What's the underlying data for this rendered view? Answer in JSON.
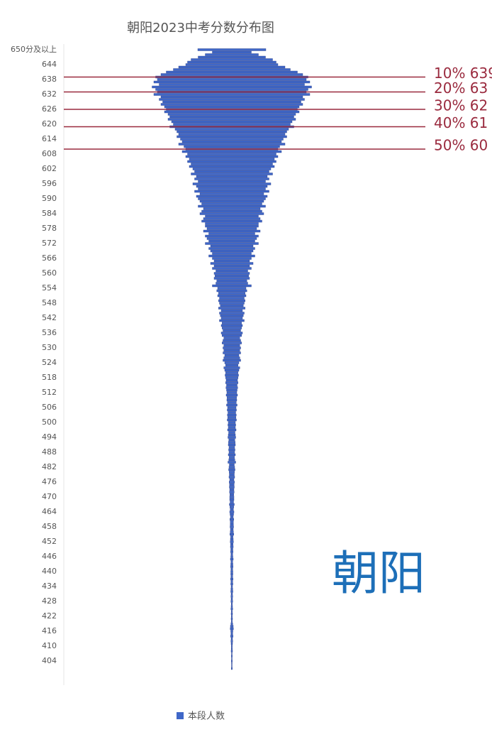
{
  "chart_data": {
    "type": "bar",
    "orientation": "horizontal-centered",
    "title": "朝阳2023中考分数分布图",
    "watermark": "朝阳",
    "categories": [
      "650分及以上",
      null,
      null,
      null,
      null,
      null,
      "644",
      null,
      null,
      null,
      null,
      null,
      "638",
      null,
      null,
      null,
      null,
      null,
      "632",
      null,
      null,
      null,
      null,
      null,
      "626",
      null,
      null,
      null,
      null,
      null,
      "620",
      null,
      null,
      null,
      null,
      null,
      "614",
      null,
      null,
      null,
      null,
      null,
      "608",
      null,
      null,
      null,
      null,
      null,
      "602",
      null,
      null,
      null,
      null,
      null,
      "596",
      null,
      null,
      null,
      null,
      null,
      "590",
      null,
      null,
      null,
      null,
      null,
      "584",
      null,
      null,
      null,
      null,
      null,
      "578",
      null,
      null,
      null,
      null,
      null,
      "572",
      null,
      null,
      null,
      null,
      null,
      "566",
      null,
      null,
      null,
      null,
      null,
      "560",
      null,
      null,
      null,
      null,
      null,
      "554",
      null,
      null,
      null,
      null,
      null,
      "548",
      null,
      null,
      null,
      null,
      null,
      "542",
      null,
      null,
      null,
      null,
      null,
      "536",
      null,
      null,
      null,
      null,
      null,
      "530",
      null,
      null,
      null,
      null,
      null,
      "524",
      null,
      null,
      null,
      null,
      null,
      "518",
      null,
      null,
      null,
      null,
      null,
      "512",
      null,
      null,
      null,
      null,
      null,
      "506",
      null,
      null,
      null,
      null,
      null,
      "500",
      null,
      null,
      null,
      null,
      null,
      "494",
      null,
      null,
      null,
      null,
      null,
      "488",
      null,
      null,
      null,
      null,
      null,
      "482",
      null,
      null,
      null,
      null,
      null,
      "476",
      null,
      null,
      null,
      null,
      null,
      "470",
      null,
      null,
      null,
      null,
      null,
      "464",
      null,
      null,
      null,
      null,
      null,
      "458",
      null,
      null,
      null,
      null,
      null,
      "452",
      null,
      null,
      null,
      null,
      null,
      "446",
      null,
      null,
      null,
      null,
      null,
      "440",
      null,
      null,
      null,
      null,
      null,
      "434",
      null,
      null,
      null,
      null,
      null,
      "428",
      null,
      null,
      null,
      null,
      null,
      "422",
      null,
      null,
      null,
      null,
      null,
      "416",
      null,
      null,
      null,
      null,
      null,
      "410",
      null,
      null,
      null,
      null,
      null,
      "404",
      null,
      null,
      null
    ],
    "series": [
      {
        "name": "本段人数",
        "color": "#3f67c8",
        "values": [
          192,
          110,
          150,
          190,
          230,
          250,
          260,
          300,
          330,
          370,
          400,
          430,
          420,
          440,
          410,
          450,
          430,
          420,
          440,
          400,
          410,
          390,
          400,
          380,
          370,
          380,
          360,
          350,
          360,
          340,
          330,
          350,
          320,
          310,
          300,
          310,
          290,
          280,
          300,
          270,
          260,
          280,
          250,
          260,
          240,
          250,
          230,
          240,
          220,
          210,
          230,
          200,
          210,
          190,
          220,
          200,
          190,
          210,
          180,
          200,
          190,
          180,
          170,
          190,
          160,
          170,
          180,
          150,
          160,
          170,
          150,
          150,
          140,
          160,
          130,
          150,
          140,
          130,
          150,
          120,
          130,
          120,
          110,
          130,
          110,
          100,
          120,
          100,
          110,
          90,
          100,
          95,
          100,
          85,
          90,
          110,
          80,
          85,
          75,
          80,
          70,
          75,
          70,
          65,
          75,
          60,
          70,
          65,
          60,
          70,
          55,
          60,
          55,
          50,
          60,
          55,
          45,
          50,
          55,
          45,
          50,
          45,
          50,
          40,
          45,
          50,
          40,
          35,
          45,
          40,
          35,
          38,
          35,
          32,
          35,
          30,
          33,
          30,
          28,
          32,
          27,
          28,
          25,
          30,
          24,
          26,
          22,
          25,
          23,
          26,
          20,
          22,
          20,
          24,
          18,
          20,
          22,
          17,
          19,
          20,
          16,
          18,
          16,
          20,
          15,
          17,
          22,
          14,
          16,
          18,
          15,
          14,
          16,
          12,
          15,
          13,
          14,
          12,
          13,
          11,
          12,
          12,
          10,
          14,
          11,
          9,
          12,
          10,
          8,
          11,
          9,
          9,
          10,
          8,
          9,
          11,
          7,
          8,
          9,
          7,
          8,
          6,
          7,
          5,
          6,
          8,
          5,
          6,
          7,
          5,
          6,
          6,
          5,
          7,
          5,
          6,
          4,
          5,
          6,
          4,
          5,
          4,
          5,
          3,
          4,
          5,
          3,
          4,
          3,
          4,
          3,
          5,
          8,
          9,
          6,
          5,
          7,
          4,
          5,
          4,
          3,
          3,
          4,
          2,
          3,
          2,
          3,
          2,
          2,
          3
        ]
      }
    ],
    "annotations": [
      {
        "text": "10% 639",
        "category_index": 11
      },
      {
        "text": "20% 63",
        "category_index": 17
      },
      {
        "text": "30% 62",
        "category_index": 24
      },
      {
        "text": "40% 61",
        "category_index": 31
      },
      {
        "text": "50% 60",
        "category_index": 40
      }
    ],
    "annotation_color": "#9a2a3e"
  }
}
